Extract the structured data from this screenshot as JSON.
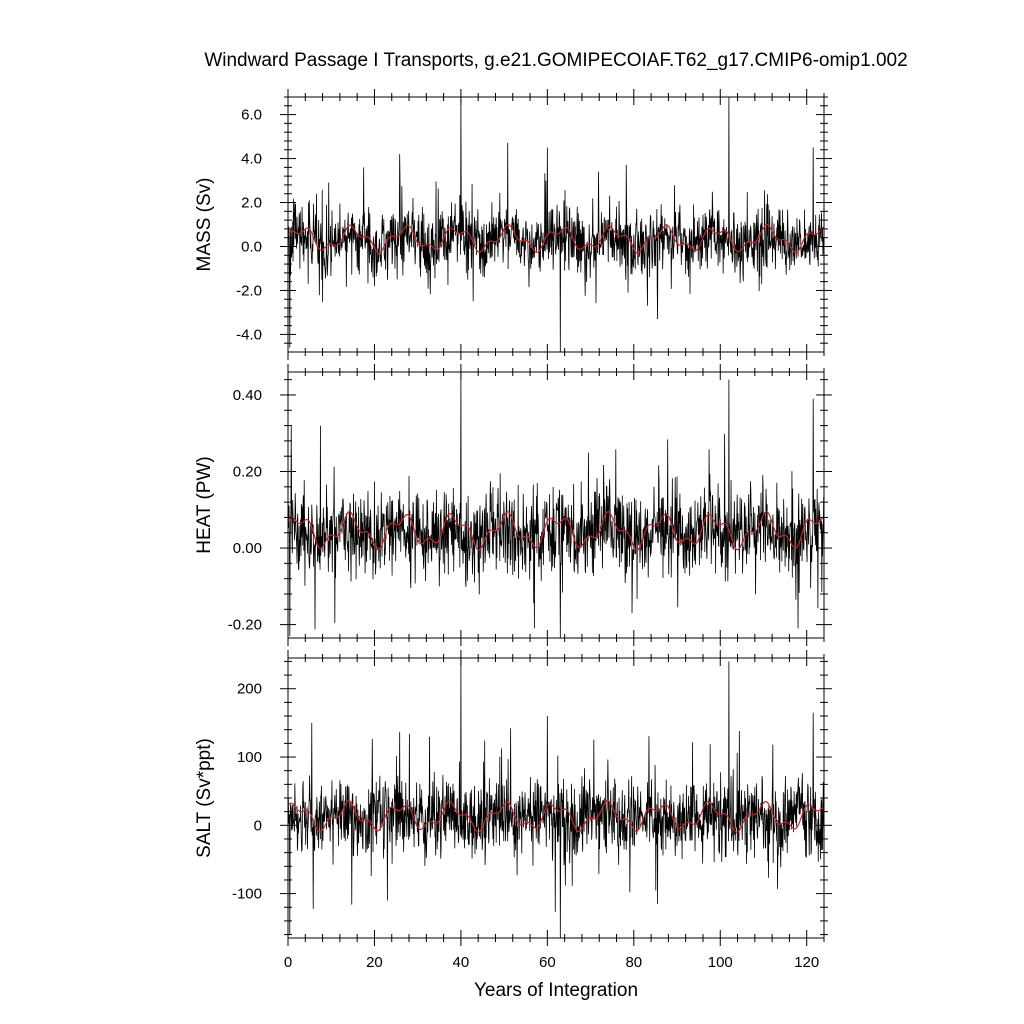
{
  "figure": {
    "title": "Windward Passage I Transports, g.e21.GOMIPECOIAF.T62_g17.CMIP6-omip1.002",
    "xlabel": "Years of Integration"
  },
  "colors": {
    "raw_series": "#000000",
    "smoothed_series": "#cc2222",
    "axes": "#000000",
    "background": "#ffffff"
  },
  "chart_data": [
    {
      "type": "line",
      "ylabel": "MASS (Sv)",
      "xlim": [
        0,
        124
      ],
      "ylim": [
        -4.8,
        6.8
      ],
      "xticks": [
        0,
        20,
        40,
        60,
        80,
        100,
        120
      ],
      "xtick_labels": [
        "0",
        "20",
        "40",
        "60",
        "80",
        "100",
        "120"
      ],
      "yticks": [
        -4.0,
        -2.0,
        0.0,
        2.0,
        4.0,
        6.0
      ],
      "ytick_labels": [
        "-4.0",
        "-2.0",
        "0.0",
        "2.0",
        "4.0",
        "6.0"
      ],
      "grid": false,
      "legend": "none",
      "series": [
        {
          "style": "monthly-raw",
          "x_start": 0,
          "x_end": 124,
          "baseline": 0.3,
          "amplitude": 0.75,
          "extremes": [
            [
              0.4,
              -4.6
            ],
            [
              40.0,
              6.8
            ],
            [
              63.0,
              -4.8
            ],
            [
              102.0,
              6.8
            ],
            [
              17.5,
              3.6
            ],
            [
              25.8,
              4.2
            ],
            [
              60.0,
              4.5
            ],
            [
              85.5,
              -3.3
            ],
            [
              121.5,
              4.5
            ]
          ]
        },
        {
          "style": "smoothed",
          "x_start": 0,
          "x_end": 124,
          "baseline": 0.35,
          "amplitude": 0.45,
          "period_years": 12
        }
      ]
    },
    {
      "type": "line",
      "ylabel": "HEAT (PW)",
      "xlim": [
        0,
        124
      ],
      "ylim": [
        -0.235,
        0.46
      ],
      "xticks": [
        0,
        20,
        40,
        60,
        80,
        100,
        120
      ],
      "xtick_labels": [
        "0",
        "20",
        "40",
        "60",
        "80",
        "100",
        "120"
      ],
      "yticks": [
        -0.2,
        0.0,
        0.2,
        0.4
      ],
      "ytick_labels": [
        "-0.20",
        "0.00",
        "0.20",
        "0.40"
      ],
      "grid": false,
      "legend": "none",
      "series": [
        {
          "style": "monthly-raw",
          "x_start": 0,
          "x_end": 124,
          "baseline": 0.04,
          "amplitude": 0.055,
          "extremes": [
            [
              0.4,
              -0.23
            ],
            [
              40.0,
              0.46
            ],
            [
              63.0,
              -0.235
            ],
            [
              102.0,
              0.44
            ],
            [
              7.5,
              0.32
            ],
            [
              57.0,
              -0.21
            ],
            [
              118.0,
              -0.21
            ],
            [
              121.5,
              0.39
            ]
          ]
        },
        {
          "style": "smoothed",
          "x_start": 0,
          "x_end": 124,
          "baseline": 0.045,
          "amplitude": 0.035,
          "period_years": 12
        }
      ]
    },
    {
      "type": "line",
      "ylabel": "SALT (Sv*ppt)",
      "xlim": [
        0,
        124
      ],
      "ylim": [
        -165,
        245
      ],
      "xticks": [
        0,
        20,
        40,
        60,
        80,
        100,
        120
      ],
      "xtick_labels": [
        "0",
        "20",
        "40",
        "60",
        "80",
        "100",
        "120"
      ],
      "yticks": [
        -100,
        0,
        100,
        200
      ],
      "ytick_labels": [
        "-100",
        "0",
        "100",
        "200"
      ],
      "grid": false,
      "legend": "none",
      "series": [
        {
          "style": "monthly-raw",
          "x_start": 0,
          "x_end": 124,
          "baseline": 12,
          "amplitude": 27,
          "extremes": [
            [
              0.4,
              -160
            ],
            [
              40.0,
              245
            ],
            [
              63.0,
              -165
            ],
            [
              102.0,
              240
            ],
            [
              5.5,
              150
            ],
            [
              60.0,
              160
            ],
            [
              23.0,
              -110
            ],
            [
              85.5,
              -115
            ],
            [
              121.5,
              165
            ]
          ]
        },
        {
          "style": "smoothed",
          "x_start": 0,
          "x_end": 124,
          "baseline": 13,
          "amplitude": 16,
          "period_years": 12
        }
      ]
    }
  ]
}
